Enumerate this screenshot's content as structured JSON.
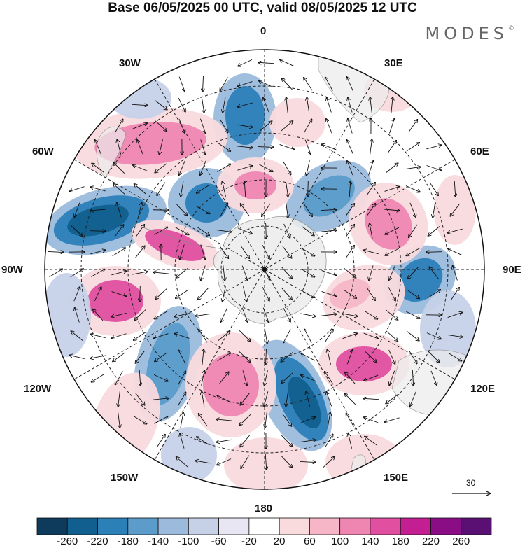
{
  "title": "Base 06/05/2025 00 UTC, valid 08/05/2025 12 UTC",
  "brand": "MODES",
  "brand_mark": "©",
  "longitudes": {
    "top": "0",
    "bottom": "180",
    "left": "90W",
    "right": "90E",
    "nw1": "30W",
    "nw2": "60W",
    "ne1": "30E",
    "ne2": "60E",
    "sw1": "120W",
    "sw2": "150W",
    "se1": "120E",
    "se2": "150E"
  },
  "reference_vector": "30",
  "colorbar": {
    "labels": [
      "-260",
      "-220",
      "-180",
      "-140",
      "-100",
      "-60",
      "-20",
      "20",
      "60",
      "100",
      "140",
      "180",
      "220",
      "260"
    ],
    "colors": [
      "#0e3a5c",
      "#115f8e",
      "#2c80b8",
      "#5b9ccb",
      "#9bbadc",
      "#c6d1e8",
      "#e8e6f2",
      "#ffffff",
      "#f9dadd",
      "#f6b6c8",
      "#ef86b2",
      "#e04fa0",
      "#c41f92",
      "#8a0d85",
      "#5a0f73"
    ]
  },
  "anomaly_cells": [
    {
      "value": -240,
      "region": "west of 60W-90W, southern Atlantic/Pacific"
    },
    {
      "value": -200,
      "region": "near 120E-150E, south of Australia"
    },
    {
      "value": -180,
      "region": "near 90E"
    },
    {
      "value": -180,
      "region": "near 120W"
    },
    {
      "value": -160,
      "region": "near 15W"
    },
    {
      "value": -140,
      "region": "near 60E"
    },
    {
      "value": -160,
      "region": "near 45W"
    },
    {
      "value": 180,
      "region": "near 45W-60W"
    },
    {
      "value": 180,
      "region": "near 75W"
    },
    {
      "value": 160,
      "region": "near 105W"
    },
    {
      "value": 160,
      "region": "near 135E"
    },
    {
      "value": 140,
      "region": "near 75E"
    },
    {
      "value": 140,
      "region": "near 165W"
    },
    {
      "value": 120,
      "region": "near 15W, Antarctic coast"
    }
  ]
}
